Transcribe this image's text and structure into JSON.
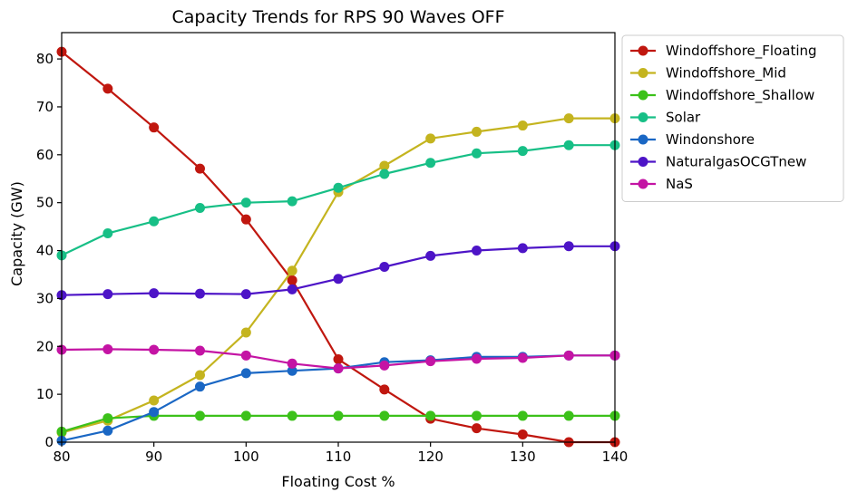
{
  "chart_data": {
    "type": "line",
    "title": "Capacity Trends for RPS 90 Waves OFF",
    "xlabel": "Floating Cost %",
    "ylabel": "Capacity (GW)",
    "xlim": [
      80,
      140
    ],
    "ylim": [
      0,
      85.5
    ],
    "xticks": [
      80,
      90,
      100,
      110,
      120,
      130,
      140
    ],
    "yticks": [
      0,
      10,
      20,
      30,
      40,
      50,
      60,
      70,
      80
    ],
    "grid": false,
    "legend_position": "outside-top-right",
    "x": [
      80,
      85,
      90,
      95,
      100,
      105,
      110,
      115,
      120,
      125,
      130,
      135,
      140
    ],
    "series": [
      {
        "name": "Windoffshore_Floating",
        "color": "#c0170f",
        "values": [
          81.5,
          73.8,
          65.7,
          57.1,
          46.5,
          33.8,
          17.3,
          11.0,
          4.9,
          2.9,
          1.6,
          0.0,
          0.0
        ]
      },
      {
        "name": "Windoffshore_Mid",
        "color": "#c4b41f",
        "values": [
          2.0,
          4.5,
          8.7,
          14.0,
          22.9,
          35.8,
          52.2,
          57.7,
          63.4,
          64.8,
          66.1,
          67.6,
          67.6
        ]
      },
      {
        "name": "Windoffshore_Shallow",
        "color": "#3cc11a",
        "values": [
          2.2,
          5.0,
          5.5,
          5.5,
          5.5,
          5.5,
          5.5,
          5.5,
          5.5,
          5.5,
          5.5,
          5.5,
          5.5
        ]
      },
      {
        "name": "Solar",
        "color": "#17bf86",
        "values": [
          39.0,
          43.6,
          46.1,
          48.9,
          50.0,
          50.3,
          53.1,
          56.0,
          58.3,
          60.3,
          60.8,
          62.0,
          62.0
        ]
      },
      {
        "name": "Windonshore",
        "color": "#1a67c4",
        "values": [
          0.3,
          2.4,
          6.3,
          11.6,
          14.4,
          14.9,
          15.4,
          16.7,
          17.1,
          17.8,
          17.8,
          18.1,
          18.1
        ]
      },
      {
        "name": "NaturalgasOCGTnew",
        "color": "#4d14c7",
        "values": [
          30.7,
          30.9,
          31.1,
          31.0,
          30.9,
          31.9,
          34.1,
          36.6,
          38.9,
          40.0,
          40.5,
          40.9,
          40.9
        ]
      },
      {
        "name": "NaS",
        "color": "#c414a4",
        "values": [
          19.3,
          19.4,
          19.3,
          19.1,
          18.1,
          16.4,
          15.4,
          16.0,
          16.9,
          17.4,
          17.6,
          18.1,
          18.1
        ]
      }
    ]
  }
}
